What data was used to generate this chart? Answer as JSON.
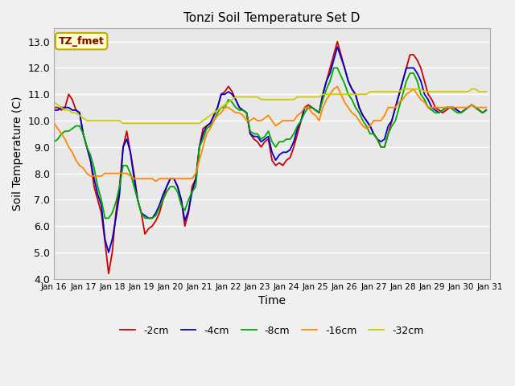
{
  "title": "Tonzi Soil Temperature Set D",
  "xlabel": "Time",
  "ylabel": "Soil Temperature (C)",
  "ylim": [
    4.0,
    13.5
  ],
  "yticks": [
    4.0,
    5.0,
    6.0,
    7.0,
    8.0,
    9.0,
    10.0,
    11.0,
    12.0,
    13.0
  ],
  "bg_outer": "#f0f0f0",
  "bg_plot": "#e8e8e8",
  "grid_color": "#ffffff",
  "annotation_label": "TZ_fmet",
  "annotation_color": "#8b0000",
  "annotation_bg": "#ffffcc",
  "annotation_border": "#c8a800",
  "legend_entries": [
    "-2cm",
    "-4cm",
    "-8cm",
    "-16cm",
    "-32cm"
  ],
  "line_colors": [
    "#cc0000",
    "#0000cc",
    "#00aa00",
    "#ff8800",
    "#cccc00"
  ],
  "x": [
    0,
    1,
    2,
    3,
    4,
    5,
    6,
    7,
    8,
    9,
    10,
    11,
    12,
    13,
    14,
    15,
    16,
    17,
    18,
    19,
    20,
    21,
    22,
    23,
    24,
    25,
    26,
    27,
    28,
    29,
    30,
    31,
    32,
    33,
    34,
    35,
    36,
    37,
    38,
    39,
    40,
    41,
    42,
    43,
    44,
    45,
    46,
    47,
    48,
    49,
    50,
    51,
    52,
    53,
    54,
    55,
    56,
    57,
    58,
    59,
    60,
    61,
    62,
    63,
    64,
    65,
    66,
    67,
    68,
    69,
    70,
    71,
    72,
    73,
    74,
    75,
    76,
    77,
    78,
    79,
    80,
    81,
    82,
    83,
    84,
    85,
    86,
    87,
    88,
    89,
    90,
    91,
    92,
    93,
    94,
    95,
    96,
    97,
    98,
    99,
    100,
    101,
    102,
    103,
    104,
    105,
    106,
    107,
    108,
    109,
    110,
    111,
    112,
    113,
    114,
    115,
    116,
    117,
    118,
    119
  ],
  "neg2cm": [
    10.5,
    10.5,
    10.4,
    10.5,
    11.0,
    10.8,
    10.4,
    10.3,
    9.5,
    9.0,
    8.5,
    7.5,
    7.0,
    6.5,
    5.4,
    4.2,
    5.0,
    6.5,
    7.5,
    9.0,
    9.6,
    8.8,
    8.0,
    7.0,
    6.5,
    5.7,
    5.9,
    6.0,
    6.2,
    6.5,
    7.0,
    7.5,
    7.8,
    7.8,
    7.5,
    7.0,
    6.0,
    6.5,
    7.5,
    7.8,
    9.0,
    9.7,
    9.8,
    9.9,
    10.2,
    10.5,
    11.0,
    11.1,
    11.3,
    11.1,
    10.8,
    10.5,
    10.4,
    10.3,
    9.5,
    9.3,
    9.2,
    9.0,
    9.2,
    9.3,
    8.5,
    8.3,
    8.4,
    8.3,
    8.5,
    8.6,
    9.0,
    9.5,
    10.0,
    10.5,
    10.6,
    10.5,
    10.4,
    10.3,
    11.0,
    11.5,
    12.0,
    12.5,
    13.0,
    12.5,
    12.0,
    11.5,
    11.2,
    11.0,
    10.5,
    10.2,
    10.0,
    9.8,
    9.5,
    9.3,
    9.0,
    9.0,
    9.5,
    10.0,
    10.5,
    11.0,
    11.5,
    12.0,
    12.5,
    12.5,
    12.3,
    12.0,
    11.5,
    11.0,
    10.8,
    10.5,
    10.4,
    10.3,
    10.4,
    10.5,
    10.5,
    10.4,
    10.3,
    10.4,
    10.5,
    10.6,
    10.5,
    10.4,
    10.3,
    10.4
  ],
  "neg4cm": [
    10.4,
    10.4,
    10.5,
    10.5,
    10.5,
    10.4,
    10.4,
    10.3,
    9.5,
    9.0,
    8.5,
    7.8,
    7.2,
    6.8,
    5.5,
    5.0,
    5.5,
    6.3,
    7.2,
    9.0,
    9.3,
    8.8,
    7.8,
    7.0,
    6.5,
    6.4,
    6.3,
    6.3,
    6.5,
    6.8,
    7.2,
    7.5,
    7.8,
    7.8,
    7.5,
    7.0,
    6.2,
    6.6,
    7.3,
    7.8,
    9.0,
    9.5,
    9.8,
    9.9,
    10.2,
    10.5,
    11.0,
    11.0,
    11.1,
    11.0,
    10.8,
    10.5,
    10.4,
    10.3,
    9.5,
    9.4,
    9.4,
    9.2,
    9.3,
    9.4,
    8.8,
    8.5,
    8.7,
    8.8,
    8.8,
    8.9,
    9.2,
    9.7,
    10.0,
    10.5,
    10.5,
    10.5,
    10.4,
    10.3,
    11.0,
    11.5,
    11.8,
    12.3,
    12.8,
    12.4,
    12.0,
    11.5,
    11.2,
    11.0,
    10.5,
    10.2,
    10.0,
    9.8,
    9.5,
    9.3,
    9.2,
    9.3,
    9.8,
    10.0,
    10.5,
    11.0,
    11.5,
    12.0,
    12.0,
    12.0,
    11.8,
    11.5,
    11.0,
    10.8,
    10.5,
    10.4,
    10.3,
    10.4,
    10.5,
    10.5,
    10.5,
    10.4,
    10.3,
    10.4,
    10.5,
    10.6,
    10.5,
    10.4,
    10.3,
    10.4
  ],
  "neg8cm": [
    9.2,
    9.3,
    9.5,
    9.6,
    9.6,
    9.7,
    9.8,
    9.8,
    9.5,
    9.0,
    8.7,
    8.2,
    7.5,
    7.0,
    6.3,
    6.3,
    6.5,
    6.9,
    7.5,
    8.3,
    8.3,
    8.0,
    7.5,
    7.0,
    6.5,
    6.3,
    6.3,
    6.3,
    6.4,
    6.7,
    7.0,
    7.3,
    7.5,
    7.5,
    7.3,
    6.8,
    6.6,
    7.0,
    7.3,
    7.5,
    9.0,
    9.3,
    9.7,
    9.8,
    10.0,
    10.3,
    10.5,
    10.5,
    10.8,
    10.7,
    10.5,
    10.4,
    10.4,
    10.3,
    9.6,
    9.5,
    9.5,
    9.3,
    9.4,
    9.6,
    9.2,
    9.0,
    9.2,
    9.2,
    9.3,
    9.3,
    9.5,
    9.8,
    10.0,
    10.3,
    10.5,
    10.5,
    10.4,
    10.3,
    10.8,
    11.2,
    11.5,
    12.0,
    12.0,
    11.7,
    11.4,
    11.0,
    10.8,
    10.5,
    10.3,
    10.0,
    9.8,
    9.5,
    9.5,
    9.3,
    9.0,
    9.0,
    9.5,
    9.8,
    10.0,
    10.5,
    11.0,
    11.5,
    11.8,
    11.8,
    11.5,
    11.0,
    10.8,
    10.5,
    10.4,
    10.3,
    10.3,
    10.4,
    10.5,
    10.5,
    10.4,
    10.3,
    10.3,
    10.4,
    10.5,
    10.6,
    10.5,
    10.4,
    10.3,
    10.4
  ],
  "neg16cm": [
    9.9,
    9.7,
    9.5,
    9.3,
    9.0,
    8.8,
    8.5,
    8.3,
    8.2,
    8.0,
    7.9,
    7.9,
    7.9,
    7.9,
    8.0,
    8.0,
    8.0,
    8.0,
    8.0,
    8.0,
    8.0,
    7.9,
    7.8,
    7.8,
    7.8,
    7.8,
    7.8,
    7.8,
    7.7,
    7.8,
    7.8,
    7.8,
    7.8,
    7.8,
    7.8,
    7.8,
    7.8,
    7.8,
    7.8,
    8.0,
    8.5,
    9.0,
    9.5,
    9.7,
    10.0,
    10.2,
    10.3,
    10.5,
    10.5,
    10.4,
    10.3,
    10.3,
    10.2,
    10.0,
    10.0,
    10.1,
    10.0,
    10.0,
    10.1,
    10.2,
    10.0,
    9.8,
    9.9,
    10.0,
    10.0,
    10.0,
    10.0,
    10.2,
    10.3,
    10.5,
    10.5,
    10.3,
    10.2,
    10.0,
    10.5,
    10.8,
    11.0,
    11.2,
    11.3,
    11.0,
    10.7,
    10.5,
    10.3,
    10.2,
    10.0,
    9.8,
    9.7,
    9.8,
    10.0,
    10.0,
    10.0,
    10.2,
    10.5,
    10.5,
    10.5,
    10.7,
    10.8,
    11.0,
    11.1,
    11.2,
    11.0,
    10.8,
    10.7,
    10.5,
    10.5,
    10.5,
    10.5,
    10.5,
    10.5,
    10.5,
    10.5,
    10.5,
    10.5,
    10.5,
    10.5,
    10.6,
    10.5,
    10.5,
    10.5,
    10.5
  ],
  "neg32cm": [
    10.7,
    10.6,
    10.5,
    10.4,
    10.4,
    10.3,
    10.3,
    10.2,
    10.1,
    10.0,
    10.0,
    10.0,
    10.0,
    10.0,
    10.0,
    10.0,
    10.0,
    10.0,
    10.0,
    9.9,
    9.9,
    9.9,
    9.9,
    9.9,
    9.9,
    9.9,
    9.9,
    9.9,
    9.9,
    9.9,
    9.9,
    9.9,
    9.9,
    9.9,
    9.9,
    9.9,
    9.9,
    9.9,
    9.9,
    9.9,
    9.9,
    10.0,
    10.1,
    10.2,
    10.3,
    10.4,
    10.5,
    10.6,
    10.7,
    10.8,
    10.9,
    10.9,
    10.9,
    10.9,
    10.9,
    10.9,
    10.9,
    10.8,
    10.8,
    10.8,
    10.8,
    10.8,
    10.8,
    10.8,
    10.8,
    10.8,
    10.8,
    10.9,
    10.9,
    10.9,
    10.9,
    10.9,
    10.9,
    10.9,
    11.0,
    11.0,
    11.0,
    11.0,
    11.0,
    11.0,
    11.0,
    11.0,
    11.0,
    11.0,
    11.0,
    11.0,
    11.0,
    11.1,
    11.1,
    11.1,
    11.1,
    11.1,
    11.1,
    11.1,
    11.1,
    11.1,
    11.2,
    11.2,
    11.2,
    11.2,
    11.2,
    11.2,
    11.1,
    11.1,
    11.1,
    11.1,
    11.1,
    11.1,
    11.1,
    11.1,
    11.1,
    11.1,
    11.1,
    11.1,
    11.1,
    11.2,
    11.2,
    11.1,
    11.1,
    11.1
  ],
  "xtick_labels": [
    "Jan 16",
    "Jan 17",
    "Jan 18",
    "Jan 19",
    "Jan 20",
    "Jan 21",
    "Jan 22",
    "Jan 23",
    "Jan 24",
    "Jan 25",
    "Jan 26",
    "Jan 27",
    "Jan 28",
    "Jan 29",
    "Jan 30",
    "Jan 31"
  ],
  "xtick_positions": [
    0,
    8,
    16,
    24,
    32,
    40,
    48,
    56,
    64,
    72,
    80,
    88,
    96,
    104,
    112,
    120
  ]
}
